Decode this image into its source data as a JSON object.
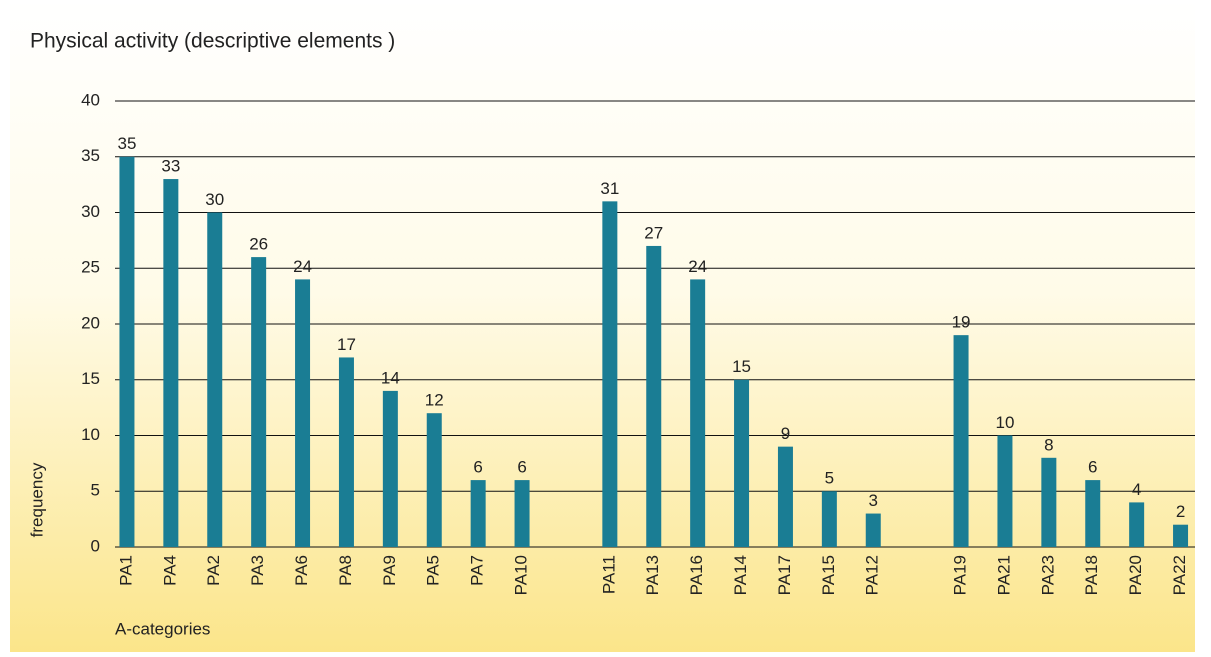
{
  "chart_data": {
    "type": "bar",
    "title": "Physical activity  (descriptive elements )",
    "xlabel": "A-categories",
    "ylabel": "frequency",
    "categories": [
      "PA1",
      "PA4",
      "PA2",
      "PA3",
      "PA6",
      "PA8",
      "PA9",
      "PA5",
      "PA7",
      "PA10",
      null,
      "PA11",
      "PA13",
      "PA16",
      "PA14",
      "PA17",
      "PA15",
      "PA12",
      null,
      "PA19",
      "PA21",
      "PA23",
      "PA18",
      "PA20",
      "PA22"
    ],
    "values": [
      35,
      33,
      30,
      26,
      24,
      17,
      14,
      12,
      6,
      6,
      null,
      31,
      27,
      24,
      15,
      9,
      5,
      3,
      null,
      19,
      10,
      8,
      6,
      4,
      2
    ],
    "color": "#1a7d94",
    "ylim": [
      0,
      40
    ],
    "yticks": [
      0,
      5,
      10,
      15,
      20,
      25,
      30,
      35,
      40
    ],
    "grid": true
  }
}
